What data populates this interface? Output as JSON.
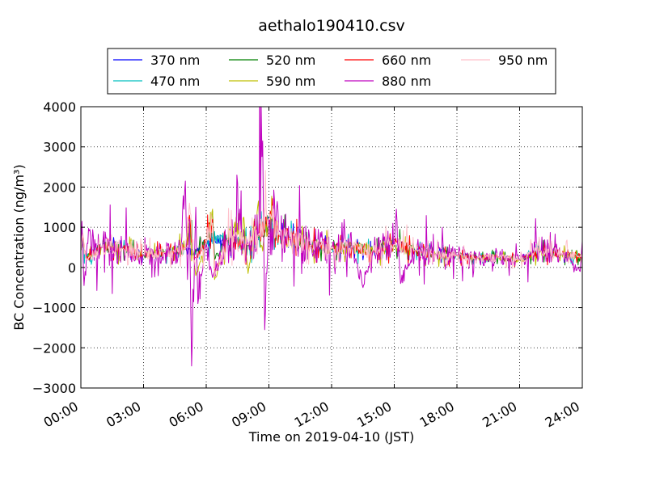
{
  "chart_data": {
    "type": "line",
    "title": "aethalo190410.csv",
    "xlabel": "Time on 2019-04-10 (JST)",
    "ylabel": "BC Concentration (ng/m³)",
    "xlim": [
      0,
      24
    ],
    "ylim": [
      -3000,
      4000
    ],
    "grid": true,
    "legend_position": "top",
    "x_ticks": [
      {
        "value": 0,
        "label": "00:00"
      },
      {
        "value": 3,
        "label": "03:00"
      },
      {
        "value": 6,
        "label": "06:00"
      },
      {
        "value": 9,
        "label": "09:00"
      },
      {
        "value": 12,
        "label": "12:00"
      },
      {
        "value": 15,
        "label": "15:00"
      },
      {
        "value": 18,
        "label": "18:00"
      },
      {
        "value": 21,
        "label": "21:00"
      },
      {
        "value": 24,
        "label": "24:00"
      }
    ],
    "y_ticks": [
      {
        "value": 4000,
        "label": "4000"
      },
      {
        "value": 3000,
        "label": "3000"
      },
      {
        "value": 2000,
        "label": "2000"
      },
      {
        "value": 1000,
        "label": "1000"
      },
      {
        "value": 0,
        "label": "0"
      },
      {
        "value": -1000,
        "label": "−1000"
      },
      {
        "value": -2000,
        "label": "−2000"
      },
      {
        "value": -3000,
        "label": "−3000"
      }
    ],
    "series": [
      {
        "name": "370 nm",
        "color": "#0000ff",
        "amp": 0.35,
        "points": [
          [
            0,
            450
          ],
          [
            0.1,
            600
          ],
          [
            0.25,
            300
          ],
          [
            1,
            520
          ],
          [
            2,
            500
          ],
          [
            3,
            320
          ],
          [
            4,
            380
          ],
          [
            5,
            480
          ],
          [
            5.4,
            350
          ],
          [
            6,
            620
          ],
          [
            7,
            700
          ],
          [
            8,
            550
          ],
          [
            8.5,
            700
          ],
          [
            9,
            1250
          ],
          [
            9.5,
            800
          ],
          [
            10,
            750
          ],
          [
            11,
            560
          ],
          [
            12,
            480
          ],
          [
            13,
            520
          ],
          [
            14,
            420
          ],
          [
            15,
            580
          ],
          [
            16,
            430
          ],
          [
            17,
            330
          ],
          [
            18,
            300
          ],
          [
            19,
            250
          ],
          [
            20,
            260
          ],
          [
            21,
            190
          ],
          [
            22,
            420
          ],
          [
            23,
            330
          ],
          [
            24,
            260
          ]
        ]
      },
      {
        "name": "470 nm",
        "color": "#00bfbf",
        "amp": 0.45,
        "points": [
          [
            0,
            430
          ],
          [
            0.1,
            650
          ],
          [
            0.25,
            280
          ],
          [
            1,
            500
          ],
          [
            2,
            480
          ],
          [
            3,
            300
          ],
          [
            4,
            370
          ],
          [
            5,
            470
          ],
          [
            5.2,
            900
          ],
          [
            5.4,
            320
          ],
          [
            6,
            600
          ],
          [
            6.7,
            800
          ],
          [
            7,
            680
          ],
          [
            8,
            540
          ],
          [
            8.5,
            720
          ],
          [
            9,
            1200
          ],
          [
            9.5,
            780
          ],
          [
            10,
            720
          ],
          [
            11,
            540
          ],
          [
            12,
            470
          ],
          [
            13,
            500
          ],
          [
            14,
            410
          ],
          [
            15,
            560
          ],
          [
            16,
            420
          ],
          [
            17,
            320
          ],
          [
            18,
            290
          ],
          [
            19,
            240
          ],
          [
            20,
            250
          ],
          [
            21,
            180
          ],
          [
            22,
            400
          ],
          [
            23,
            320
          ],
          [
            24,
            250
          ]
        ]
      },
      {
        "name": "520 nm",
        "color": "#008000",
        "amp": 0.45,
        "points": [
          [
            0,
            440
          ],
          [
            0.1,
            700
          ],
          [
            0.25,
            260
          ],
          [
            1,
            510
          ],
          [
            2,
            490
          ],
          [
            3,
            310
          ],
          [
            4,
            380
          ],
          [
            5,
            460
          ],
          [
            5.2,
            1000
          ],
          [
            5.4,
            300
          ],
          [
            6,
            610
          ],
          [
            6.3,
            1400
          ],
          [
            6.4,
            200
          ],
          [
            7,
            690
          ],
          [
            8,
            550
          ],
          [
            8.5,
            750
          ],
          [
            9,
            1180
          ],
          [
            9.5,
            800
          ],
          [
            10,
            730
          ],
          [
            11,
            550
          ],
          [
            12,
            480
          ],
          [
            13,
            510
          ],
          [
            14,
            420
          ],
          [
            15,
            570
          ],
          [
            16,
            420
          ],
          [
            17,
            320
          ],
          [
            18,
            300
          ],
          [
            19,
            240
          ],
          [
            20,
            250
          ],
          [
            21,
            190
          ],
          [
            22,
            410
          ],
          [
            23,
            330
          ],
          [
            24,
            260
          ]
        ]
      },
      {
        "name": "590 nm",
        "color": "#bfbf00",
        "amp": 0.55,
        "points": [
          [
            0,
            420
          ],
          [
            0.1,
            750
          ],
          [
            0.25,
            240
          ],
          [
            1,
            500
          ],
          [
            2,
            470
          ],
          [
            3,
            300
          ],
          [
            4,
            360
          ],
          [
            5,
            450
          ],
          [
            5.2,
            1200
          ],
          [
            5.4,
            250
          ],
          [
            5.5,
            -200
          ],
          [
            6,
            600
          ],
          [
            6.3,
            1450
          ],
          [
            6.4,
            -300
          ],
          [
            7,
            680
          ],
          [
            7.8,
            1250
          ],
          [
            8,
            -150
          ],
          [
            8.5,
            1650
          ],
          [
            8.6,
            500
          ],
          [
            9,
            1150
          ],
          [
            9.5,
            780
          ],
          [
            10,
            720
          ],
          [
            11,
            540
          ],
          [
            12,
            470
          ],
          [
            13,
            500
          ],
          [
            14,
            410
          ],
          [
            15,
            560
          ],
          [
            16,
            410
          ],
          [
            17,
            310
          ],
          [
            18,
            290
          ],
          [
            19,
            230
          ],
          [
            20,
            240
          ],
          [
            21,
            180
          ],
          [
            22,
            400
          ],
          [
            23,
            320
          ],
          [
            24,
            250
          ]
        ]
      },
      {
        "name": "660 nm",
        "color": "#ff0000",
        "amp": 0.5,
        "points": [
          [
            0,
            430
          ],
          [
            0.1,
            800
          ],
          [
            0.25,
            220
          ],
          [
            1,
            510
          ],
          [
            2,
            480
          ],
          [
            3,
            310
          ],
          [
            4,
            370
          ],
          [
            5,
            460
          ],
          [
            5.2,
            1300
          ],
          [
            5.4,
            200
          ],
          [
            6,
            610
          ],
          [
            6.3,
            1200
          ],
          [
            6.4,
            -100
          ],
          [
            7,
            690
          ],
          [
            8,
            560
          ],
          [
            8.5,
            800
          ],
          [
            9,
            1200
          ],
          [
            9.5,
            790
          ],
          [
            10,
            730
          ],
          [
            11,
            550
          ],
          [
            12,
            480
          ],
          [
            13,
            510
          ],
          [
            14,
            420
          ],
          [
            15,
            570
          ],
          [
            16,
            420
          ],
          [
            17,
            320
          ],
          [
            18,
            300
          ],
          [
            19,
            240
          ],
          [
            20,
            250
          ],
          [
            21,
            190
          ],
          [
            22,
            410
          ],
          [
            23,
            330
          ],
          [
            24,
            260
          ]
        ]
      },
      {
        "name": "880 nm",
        "color": "#bf00bf",
        "amp": 1.4,
        "points": [
          [
            0,
            400
          ],
          [
            0.05,
            1150
          ],
          [
            0.15,
            -450
          ],
          [
            0.3,
            600
          ],
          [
            1,
            500
          ],
          [
            2,
            480
          ],
          [
            3,
            300
          ],
          [
            4,
            350
          ],
          [
            4.8,
            500
          ],
          [
            5,
            2150
          ],
          [
            5.1,
            -300
          ],
          [
            5.2,
            1200
          ],
          [
            5.3,
            -2450
          ],
          [
            5.5,
            1500
          ],
          [
            5.6,
            -900
          ],
          [
            6,
            600
          ],
          [
            6.3,
            -250
          ],
          [
            7,
            700
          ],
          [
            8,
            600
          ],
          [
            8.5,
            800
          ],
          [
            8.7,
            3150
          ],
          [
            8.8,
            -1550
          ],
          [
            9,
            1200
          ],
          [
            9.5,
            900
          ],
          [
            10,
            700
          ],
          [
            11,
            550
          ],
          [
            12,
            480
          ],
          [
            13,
            500
          ],
          [
            13.5,
            -500
          ],
          [
            14,
            420
          ],
          [
            15,
            560
          ],
          [
            15.1,
            1450
          ],
          [
            15.3,
            -400
          ],
          [
            16,
            430
          ],
          [
            17,
            330
          ],
          [
            18,
            300
          ],
          [
            19,
            250
          ],
          [
            20,
            260
          ],
          [
            21,
            190
          ],
          [
            22,
            420
          ],
          [
            23,
            330
          ],
          [
            23.9,
            -100
          ],
          [
            24,
            650
          ]
        ]
      },
      {
        "name": "950 nm",
        "color": "#ffc0cb",
        "amp": 0.7,
        "points": [
          [
            0,
            440
          ],
          [
            0.1,
            850
          ],
          [
            0.25,
            200
          ],
          [
            1,
            520
          ],
          [
            2,
            480
          ],
          [
            3,
            310
          ],
          [
            4,
            370
          ],
          [
            5,
            460
          ],
          [
            5.2,
            1600
          ],
          [
            5.4,
            150
          ],
          [
            6,
            610
          ],
          [
            6.3,
            1100
          ],
          [
            6.4,
            -200
          ],
          [
            7,
            690
          ],
          [
            8,
            560
          ],
          [
            8.5,
            820
          ],
          [
            9,
            1220
          ],
          [
            9.5,
            800
          ],
          [
            10,
            730
          ],
          [
            11,
            550
          ],
          [
            12,
            480
          ],
          [
            13,
            510
          ],
          [
            14,
            420
          ],
          [
            15,
            570
          ],
          [
            16,
            420
          ],
          [
            17,
            320
          ],
          [
            18,
            300
          ],
          [
            19,
            240
          ],
          [
            20,
            250
          ],
          [
            21,
            190
          ],
          [
            22,
            410
          ],
          [
            23,
            330
          ],
          [
            24,
            260
          ]
        ]
      }
    ]
  }
}
